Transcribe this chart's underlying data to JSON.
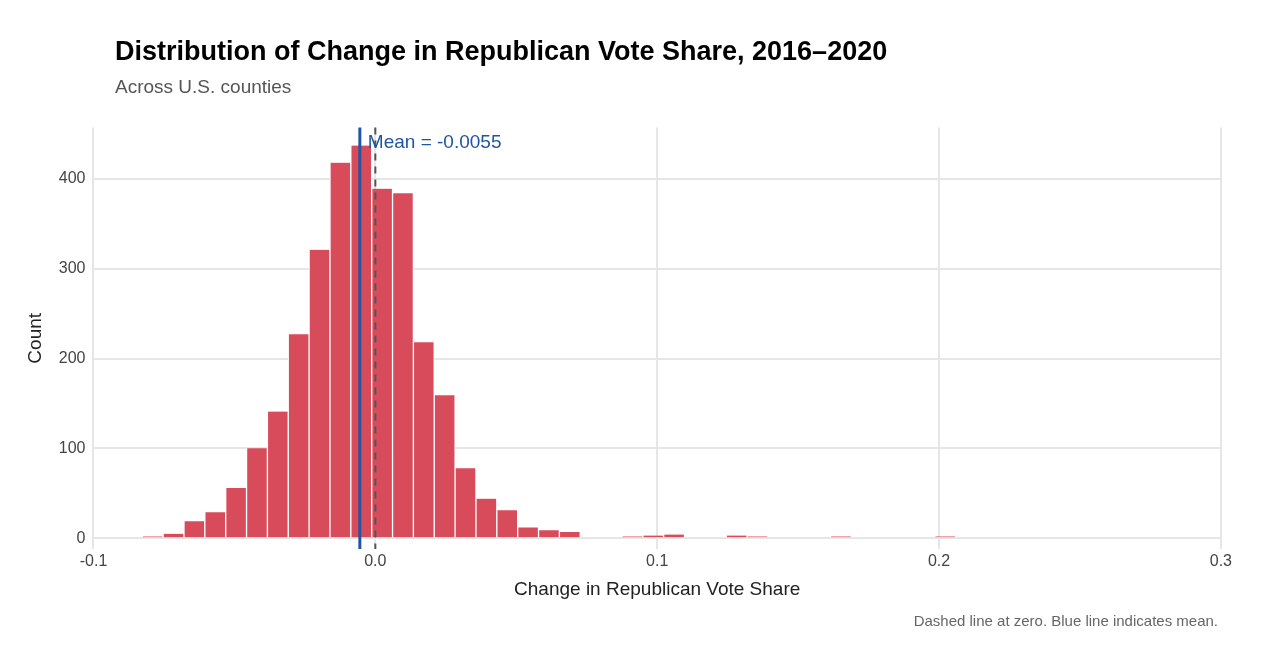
{
  "chart_data": {
    "type": "histogram",
    "title": "Distribution of Change in Republican Vote Share, 2016–2020",
    "subtitle": "Across U.S. counties",
    "xlabel": "Change in Republican Vote Share",
    "ylabel": "Count",
    "bins": [
      -0.0827,
      -0.0753,
      -0.0679,
      -0.0605,
      -0.0531,
      -0.0457,
      -0.0383,
      -0.0309,
      -0.0235,
      -0.0161,
      -0.0087,
      -0.0013,
      0.0061,
      0.0135,
      0.0209,
      0.0283,
      0.0357,
      0.0431,
      0.0505,
      0.0579,
      0.0653,
      0.0727,
      0.0801,
      0.0875,
      0.0949,
      0.1023,
      0.1097,
      0.1171,
      0.1245,
      0.1319,
      0.1393,
      0.1467,
      0.1541,
      0.1615,
      0.1689,
      0.1763,
      0.1837,
      0.1911,
      0.1985,
      0.2059,
      0.2133,
      0.2207,
      0.2281,
      0.2355,
      0.2429,
      0.2503,
      0.2577,
      0.2651,
      0.2725,
      0.2799,
      0.2873,
      0.2947
    ],
    "values": [
      2,
      5,
      19,
      29,
      56,
      100,
      141,
      227,
      321,
      418,
      437,
      389,
      384,
      218,
      159,
      78,
      44,
      31,
      12,
      9,
      7,
      0,
      0,
      2,
      3,
      4,
      0,
      0,
      3,
      2,
      0,
      0,
      0,
      2,
      0,
      0,
      0,
      0,
      2,
      0,
      0,
      0,
      0,
      0,
      0,
      0,
      0,
      0,
      0,
      0,
      1
    ],
    "color": "#d84b5b",
    "xlim": [
      -0.1,
      0.3
    ],
    "xticks": [
      -0.1,
      {
        "value": 0,
        "label": "0.0"
      },
      0.1,
      0.2,
      0.3
    ],
    "ylim": [
      -12,
      457
    ],
    "yticks": [
      0,
      100,
      200,
      300,
      400
    ],
    "grid": true,
    "legend": false,
    "ref_lines": [
      {
        "axis": "x",
        "value": 0,
        "color": "#555555",
        "line_style": "dashed"
      },
      {
        "axis": "x",
        "value": -0.0055,
        "color": "#2155a3",
        "line_style": "solid",
        "label": "Mean = -0.0055"
      }
    ],
    "annotations": [
      "Dashed line at zero. Blue line indicates mean."
    ]
  }
}
